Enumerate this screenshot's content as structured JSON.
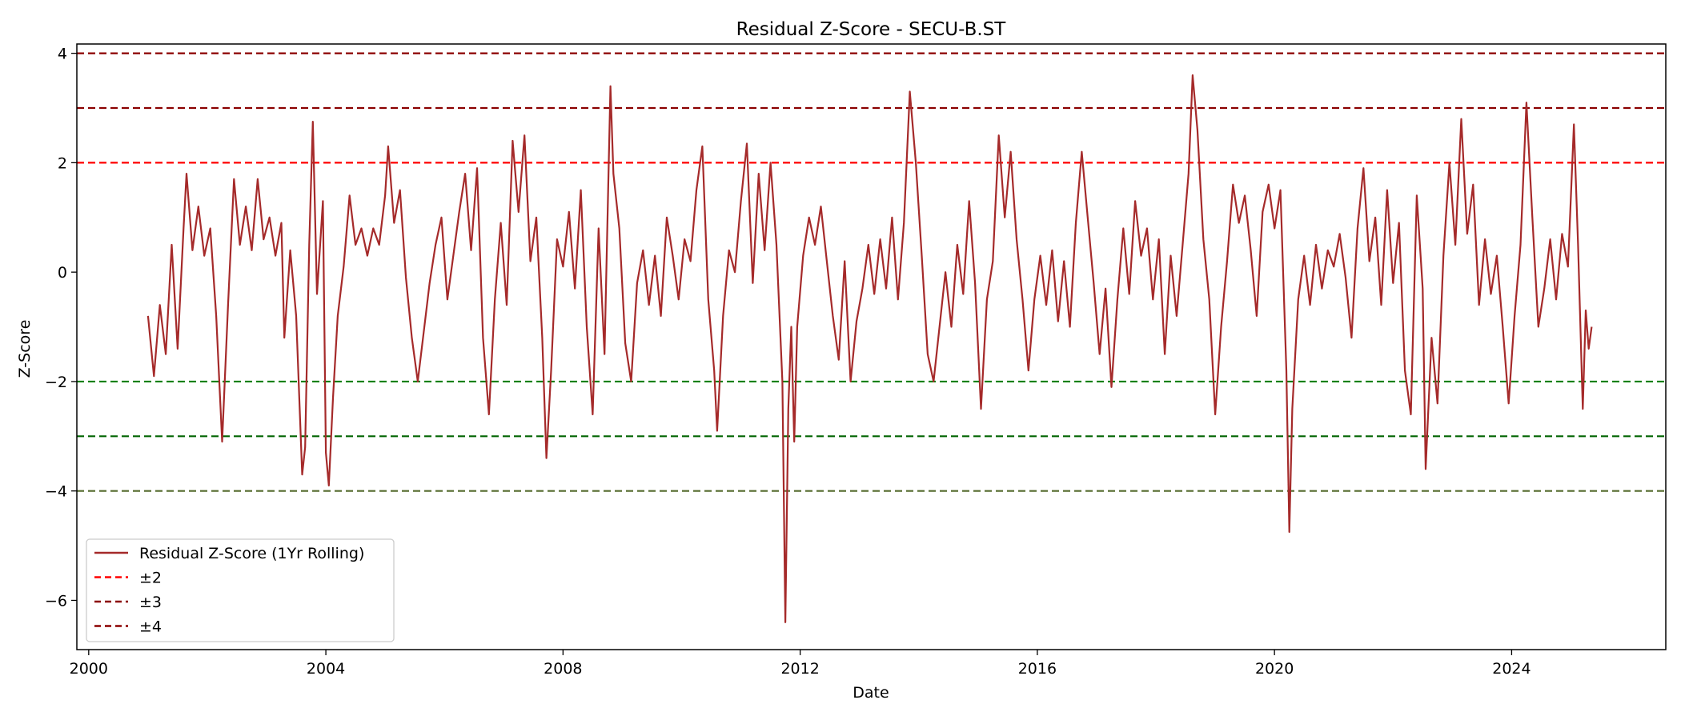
{
  "chart_data": {
    "type": "line",
    "title": "Residual Z-Score - SECU-B.ST",
    "xlabel": "Date",
    "ylabel": "Z-Score",
    "xlim": [
      1999.8,
      2026.6
    ],
    "ylim": [
      -6.9,
      4.17
    ],
    "x_ticks": [
      2000,
      2004,
      2008,
      2012,
      2016,
      2020,
      2024
    ],
    "x_tick_labels": [
      "2000",
      "2004",
      "2008",
      "2012",
      "2016",
      "2020",
      "2024"
    ],
    "y_ticks": [
      4,
      2,
      0,
      -2,
      -4,
      -6
    ],
    "y_tick_labels": [
      "4",
      "2",
      "0",
      "−2",
      "−4",
      "−6"
    ],
    "grid": false,
    "legend_position": "lower-left",
    "series": [
      {
        "name": "Residual Z-Score (1Yr Rolling)",
        "color": "#a52a2a",
        "points": [
          [
            2001.0,
            -0.8
          ],
          [
            2001.1,
            -1.9
          ],
          [
            2001.2,
            -0.6
          ],
          [
            2001.3,
            -1.5
          ],
          [
            2001.4,
            0.5
          ],
          [
            2001.5,
            -1.4
          ],
          [
            2001.6,
            0.8
          ],
          [
            2001.65,
            1.8
          ],
          [
            2001.75,
            0.4
          ],
          [
            2001.85,
            1.2
          ],
          [
            2001.95,
            0.3
          ],
          [
            2002.05,
            0.8
          ],
          [
            2002.15,
            -0.8
          ],
          [
            2002.25,
            -3.1
          ],
          [
            2002.35,
            -0.6
          ],
          [
            2002.45,
            1.7
          ],
          [
            2002.55,
            0.5
          ],
          [
            2002.65,
            1.2
          ],
          [
            2002.75,
            0.4
          ],
          [
            2002.85,
            1.7
          ],
          [
            2002.95,
            0.6
          ],
          [
            2003.05,
            1.0
          ],
          [
            2003.15,
            0.3
          ],
          [
            2003.25,
            0.9
          ],
          [
            2003.3,
            -1.2
          ],
          [
            2003.4,
            0.4
          ],
          [
            2003.5,
            -0.8
          ],
          [
            2003.6,
            -3.7
          ],
          [
            2003.65,
            -3.2
          ],
          [
            2003.72,
            0.5
          ],
          [
            2003.78,
            2.75
          ],
          [
            2003.85,
            -0.4
          ],
          [
            2003.95,
            1.3
          ],
          [
            2004.0,
            -3.3
          ],
          [
            2004.05,
            -3.9
          ],
          [
            2004.12,
            -2.3
          ],
          [
            2004.2,
            -0.8
          ],
          [
            2004.3,
            0.1
          ],
          [
            2004.4,
            1.4
          ],
          [
            2004.5,
            0.5
          ],
          [
            2004.6,
            0.8
          ],
          [
            2004.7,
            0.3
          ],
          [
            2004.8,
            0.8
          ],
          [
            2004.9,
            0.5
          ],
          [
            2005.0,
            1.4
          ],
          [
            2005.05,
            2.3
          ],
          [
            2005.15,
            0.9
          ],
          [
            2005.25,
            1.5
          ],
          [
            2005.35,
            -0.1
          ],
          [
            2005.45,
            -1.2
          ],
          [
            2005.55,
            -2.0
          ],
          [
            2005.65,
            -1.1
          ],
          [
            2005.75,
            -0.2
          ],
          [
            2005.85,
            0.5
          ],
          [
            2005.95,
            1.0
          ],
          [
            2006.05,
            -0.5
          ],
          [
            2006.15,
            0.3
          ],
          [
            2006.25,
            1.1
          ],
          [
            2006.35,
            1.8
          ],
          [
            2006.45,
            0.4
          ],
          [
            2006.55,
            1.9
          ],
          [
            2006.65,
            -1.2
          ],
          [
            2006.75,
            -2.6
          ],
          [
            2006.85,
            -0.5
          ],
          [
            2006.95,
            0.9
          ],
          [
            2007.05,
            -0.6
          ],
          [
            2007.15,
            2.4
          ],
          [
            2007.25,
            1.1
          ],
          [
            2007.35,
            2.5
          ],
          [
            2007.45,
            0.2
          ],
          [
            2007.55,
            1.0
          ],
          [
            2007.65,
            -1.2
          ],
          [
            2007.72,
            -3.4
          ],
          [
            2007.8,
            -1.8
          ],
          [
            2007.9,
            0.6
          ],
          [
            2008.0,
            0.1
          ],
          [
            2008.1,
            1.1
          ],
          [
            2008.2,
            -0.3
          ],
          [
            2008.3,
            1.5
          ],
          [
            2008.4,
            -1.0
          ],
          [
            2008.5,
            -2.6
          ],
          [
            2008.6,
            0.8
          ],
          [
            2008.7,
            -1.5
          ],
          [
            2008.8,
            3.4
          ],
          [
            2008.85,
            1.8
          ],
          [
            2008.95,
            0.8
          ],
          [
            2009.05,
            -1.3
          ],
          [
            2009.15,
            -2.0
          ],
          [
            2009.25,
            -0.2
          ],
          [
            2009.35,
            0.4
          ],
          [
            2009.45,
            -0.6
          ],
          [
            2009.55,
            0.3
          ],
          [
            2009.65,
            -0.8
          ],
          [
            2009.75,
            1.0
          ],
          [
            2009.85,
            0.3
          ],
          [
            2009.95,
            -0.5
          ],
          [
            2010.05,
            0.6
          ],
          [
            2010.15,
            0.2
          ],
          [
            2010.25,
            1.5
          ],
          [
            2010.35,
            2.3
          ],
          [
            2010.45,
            -0.5
          ],
          [
            2010.55,
            -1.8
          ],
          [
            2010.6,
            -2.9
          ],
          [
            2010.7,
            -0.8
          ],
          [
            2010.8,
            0.4
          ],
          [
            2010.9,
            0.0
          ],
          [
            2011.0,
            1.3
          ],
          [
            2011.1,
            2.35
          ],
          [
            2011.2,
            -0.2
          ],
          [
            2011.3,
            1.8
          ],
          [
            2011.4,
            0.4
          ],
          [
            2011.5,
            2.0
          ],
          [
            2011.6,
            0.5
          ],
          [
            2011.7,
            -2.0
          ],
          [
            2011.75,
            -6.4
          ],
          [
            2011.8,
            -2.5
          ],
          [
            2011.85,
            -1.0
          ],
          [
            2011.9,
            -3.1
          ],
          [
            2011.95,
            -1.0
          ],
          [
            2012.05,
            0.3
          ],
          [
            2012.15,
            1.0
          ],
          [
            2012.25,
            0.5
          ],
          [
            2012.35,
            1.2
          ],
          [
            2012.45,
            0.2
          ],
          [
            2012.55,
            -0.8
          ],
          [
            2012.65,
            -1.6
          ],
          [
            2012.75,
            0.2
          ],
          [
            2012.85,
            -2.0
          ],
          [
            2012.95,
            -0.9
          ],
          [
            2013.05,
            -0.3
          ],
          [
            2013.15,
            0.5
          ],
          [
            2013.25,
            -0.4
          ],
          [
            2013.35,
            0.6
          ],
          [
            2013.45,
            -0.3
          ],
          [
            2013.55,
            1.0
          ],
          [
            2013.65,
            -0.5
          ],
          [
            2013.75,
            0.9
          ],
          [
            2013.85,
            3.3
          ],
          [
            2013.95,
            2.0
          ],
          [
            2014.05,
            0.3
          ],
          [
            2014.15,
            -1.5
          ],
          [
            2014.25,
            -2.0
          ],
          [
            2014.35,
            -1.0
          ],
          [
            2014.45,
            0.0
          ],
          [
            2014.55,
            -1.0
          ],
          [
            2014.65,
            0.5
          ],
          [
            2014.75,
            -0.4
          ],
          [
            2014.85,
            1.3
          ],
          [
            2014.95,
            -0.2
          ],
          [
            2015.05,
            -2.5
          ],
          [
            2015.15,
            -0.5
          ],
          [
            2015.25,
            0.2
          ],
          [
            2015.35,
            2.5
          ],
          [
            2015.45,
            1.0
          ],
          [
            2015.55,
            2.2
          ],
          [
            2015.65,
            0.6
          ],
          [
            2015.75,
            -0.5
          ],
          [
            2015.85,
            -1.8
          ],
          [
            2015.95,
            -0.5
          ],
          [
            2016.05,
            0.3
          ],
          [
            2016.15,
            -0.6
          ],
          [
            2016.25,
            0.4
          ],
          [
            2016.35,
            -0.9
          ],
          [
            2016.45,
            0.2
          ],
          [
            2016.55,
            -1.0
          ],
          [
            2016.65,
            0.9
          ],
          [
            2016.75,
            2.2
          ],
          [
            2016.85,
            1.0
          ],
          [
            2016.95,
            -0.2
          ],
          [
            2017.05,
            -1.5
          ],
          [
            2017.15,
            -0.3
          ],
          [
            2017.25,
            -2.1
          ],
          [
            2017.35,
            -0.5
          ],
          [
            2017.45,
            0.8
          ],
          [
            2017.55,
            -0.4
          ],
          [
            2017.65,
            1.3
          ],
          [
            2017.75,
            0.3
          ],
          [
            2017.85,
            0.8
          ],
          [
            2017.95,
            -0.5
          ],
          [
            2018.05,
            0.6
          ],
          [
            2018.15,
            -1.5
          ],
          [
            2018.25,
            0.3
          ],
          [
            2018.35,
            -0.8
          ],
          [
            2018.45,
            0.5
          ],
          [
            2018.55,
            1.8
          ],
          [
            2018.62,
            3.6
          ],
          [
            2018.7,
            2.6
          ],
          [
            2018.8,
            0.6
          ],
          [
            2018.9,
            -0.5
          ],
          [
            2019.0,
            -2.6
          ],
          [
            2019.1,
            -1.0
          ],
          [
            2019.2,
            0.2
          ],
          [
            2019.3,
            1.6
          ],
          [
            2019.4,
            0.9
          ],
          [
            2019.5,
            1.4
          ],
          [
            2019.6,
            0.4
          ],
          [
            2019.7,
            -0.8
          ],
          [
            2019.8,
            1.1
          ],
          [
            2019.9,
            1.6
          ],
          [
            2020.0,
            0.8
          ],
          [
            2020.1,
            1.5
          ],
          [
            2020.2,
            -1.8
          ],
          [
            2020.25,
            -4.75
          ],
          [
            2020.3,
            -2.5
          ],
          [
            2020.4,
            -0.5
          ],
          [
            2020.5,
            0.3
          ],
          [
            2020.6,
            -0.6
          ],
          [
            2020.7,
            0.5
          ],
          [
            2020.8,
            -0.3
          ],
          [
            2020.9,
            0.4
          ],
          [
            2021.0,
            0.1
          ],
          [
            2021.1,
            0.7
          ],
          [
            2021.2,
            -0.1
          ],
          [
            2021.3,
            -1.2
          ],
          [
            2021.4,
            0.8
          ],
          [
            2021.5,
            1.9
          ],
          [
            2021.6,
            0.2
          ],
          [
            2021.7,
            1.0
          ],
          [
            2021.8,
            -0.6
          ],
          [
            2021.9,
            1.5
          ],
          [
            2022.0,
            -0.2
          ],
          [
            2022.1,
            0.9
          ],
          [
            2022.2,
            -1.8
          ],
          [
            2022.3,
            -2.6
          ],
          [
            2022.4,
            1.4
          ],
          [
            2022.5,
            -0.3
          ],
          [
            2022.55,
            -3.6
          ],
          [
            2022.65,
            -1.2
          ],
          [
            2022.75,
            -2.4
          ],
          [
            2022.85,
            0.3
          ],
          [
            2022.95,
            2.0
          ],
          [
            2023.05,
            0.5
          ],
          [
            2023.15,
            2.8
          ],
          [
            2023.25,
            0.7
          ],
          [
            2023.35,
            1.6
          ],
          [
            2023.45,
            -0.6
          ],
          [
            2023.55,
            0.6
          ],
          [
            2023.65,
            -0.4
          ],
          [
            2023.75,
            0.3
          ],
          [
            2023.85,
            -1.0
          ],
          [
            2023.95,
            -2.4
          ],
          [
            2024.05,
            -0.8
          ],
          [
            2024.15,
            0.5
          ],
          [
            2024.25,
            3.1
          ],
          [
            2024.35,
            1.0
          ],
          [
            2024.45,
            -1.0
          ],
          [
            2024.55,
            -0.3
          ],
          [
            2024.65,
            0.6
          ],
          [
            2024.75,
            -0.5
          ],
          [
            2024.85,
            0.7
          ],
          [
            2024.95,
            0.1
          ],
          [
            2025.05,
            2.7
          ],
          [
            2025.12,
            0.5
          ],
          [
            2025.2,
            -2.5
          ],
          [
            2025.25,
            -0.7
          ],
          [
            2025.3,
            -1.4
          ],
          [
            2025.35,
            -1.0
          ]
        ]
      }
    ],
    "reference_lines": [
      {
        "label": "±2",
        "values": [
          2,
          -2
        ],
        "colors": [
          "#ff0000",
          "#008000"
        ]
      },
      {
        "label": "±3",
        "values": [
          3,
          -3
        ],
        "colors": [
          "#8b0000",
          "#006400"
        ]
      },
      {
        "label": "±4",
        "values": [
          4,
          -4
        ],
        "colors": [
          "#8b0000",
          "#556b2f"
        ]
      }
    ],
    "legend": {
      "entries": [
        {
          "label": "Residual Z-Score (1Yr Rolling)",
          "color": "#a52a2a",
          "style": "solid"
        },
        {
          "label": "±2",
          "color": "#ff0000",
          "style": "dashed"
        },
        {
          "label": "±3",
          "color": "#8b0000",
          "style": "dashed"
        },
        {
          "label": "±4",
          "color": "#8b0000",
          "style": "dashed"
        }
      ]
    }
  }
}
